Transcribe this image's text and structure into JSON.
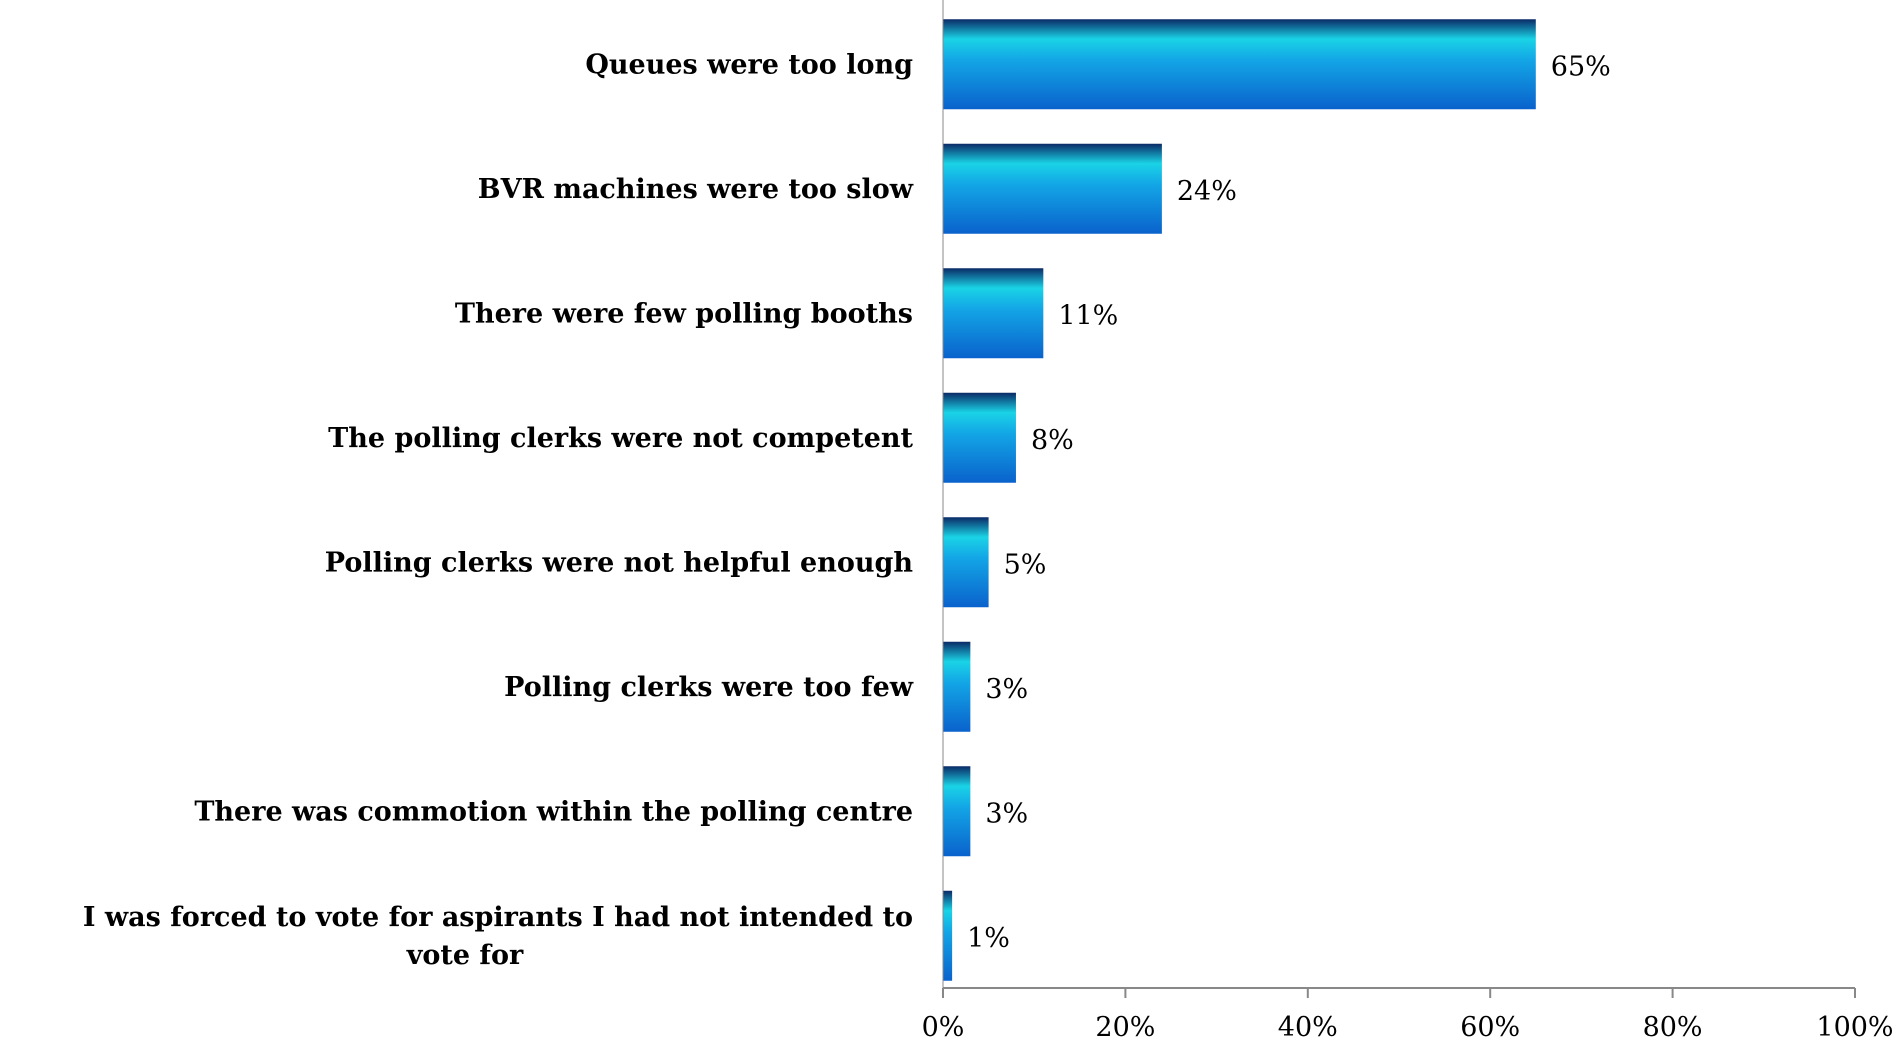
{
  "chart_data": {
    "type": "bar",
    "orientation": "horizontal",
    "categories": [
      "Queues were too long",
      "BVR machines were too slow",
      "There were few polling booths",
      "The polling clerks were not competent",
      "Polling clerks were not helpful enough",
      "Polling clerks were too few",
      "There was commotion within the polling centre",
      "I was forced to vote for aspirants I had not intended to vote for"
    ],
    "values": [
      65,
      24,
      11,
      8,
      5,
      3,
      3,
      1
    ],
    "value_labels": [
      "65%",
      "24%",
      "11%",
      "8%",
      "5%",
      "3%",
      "3%",
      "1%"
    ],
    "title": "",
    "xlabel": "",
    "ylabel": "",
    "xlim": [
      0,
      100
    ],
    "x_ticks": [
      0,
      20,
      40,
      60,
      80,
      100
    ],
    "x_tick_labels": [
      "0%",
      "20%",
      "40%",
      "60%",
      "80%",
      "100%"
    ],
    "grid": false,
    "legend": "none",
    "colors": {
      "bar_dark": "#0a2a66",
      "bar_light": "#1ad3e6",
      "bar_mid": "#13a6e6",
      "bar_bottom": "#0a62cc",
      "axis": "#888888"
    }
  }
}
